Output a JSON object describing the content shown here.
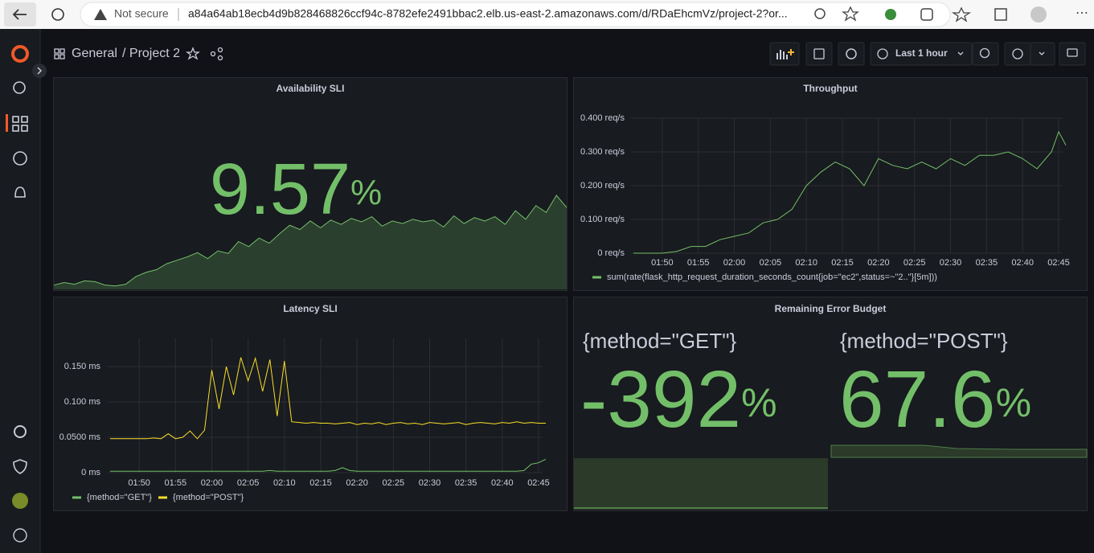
{
  "browser": {
    "security": "Not secure",
    "url": "a84a64ab18ecb4d9b828468826ccf94c-8782efe2491bbac2.elb.us-east-2.amazonaws.com/d/RDaEhcmVz/project-2?or..."
  },
  "header": {
    "folder": "General",
    "title": "/ Project 2",
    "time_range": "Last 1 hour"
  },
  "panels": [
    {
      "title": "Availability SLI",
      "type": "stat",
      "value": 9.57,
      "unit": "%",
      "color": "#73bf69",
      "sparkline": [
        0.5,
        0.8,
        0.6,
        1,
        0.9,
        0.5,
        0.4,
        0.6,
        1.5,
        2,
        2.3,
        3,
        3.4,
        3.8,
        4.3,
        3.6,
        4.5,
        4.2,
        5.6,
        5,
        6,
        5.4,
        6.5,
        7.5,
        7,
        8,
        7.2,
        8.1,
        7.6,
        8.3,
        7.9,
        8.5,
        7.4,
        8,
        7.7,
        8.2,
        7.9,
        8.1,
        7.3,
        8.6,
        7.7,
        8.4,
        8,
        8.5,
        7.6,
        9.2,
        8.2,
        9.8,
        9,
        11,
        9.57
      ]
    },
    {
      "title": "Throughput",
      "chart_data": {
        "type": "line",
        "x": [
          "01:46",
          "01:48",
          "01:50",
          "01:52",
          "01:54",
          "01:56",
          "01:58",
          "02:00",
          "02:02",
          "02:04",
          "02:06",
          "02:08",
          "02:10",
          "02:12",
          "02:14",
          "02:16",
          "02:18",
          "02:20",
          "02:22",
          "02:24",
          "02:26",
          "02:28",
          "02:30",
          "02:32",
          "02:34",
          "02:36",
          "02:38",
          "02:40",
          "02:42",
          "02:44",
          "02:45",
          "02:46"
        ],
        "xlim": [
          "01:45",
          "02:46"
        ],
        "xticks": [
          "01:50",
          "01:55",
          "02:00",
          "02:05",
          "02:10",
          "02:15",
          "02:20",
          "02:25",
          "02:30",
          "02:35",
          "02:40",
          "02:45"
        ],
        "ylim": [
          0,
          0.4
        ],
        "yticks": [
          {
            "value": 0,
            "label": "0 req/s"
          },
          {
            "value": 0.1,
            "label": "0.100 req/s"
          },
          {
            "value": 0.2,
            "label": "0.200 req/s"
          },
          {
            "value": 0.3,
            "label": "0.300 req/s"
          },
          {
            "value": 0.4,
            "label": "0.400 req/s"
          }
        ],
        "grid": true,
        "series": [
          {
            "name": "sum(rate(flask_http_request_duration_seconds_count{job=\"ec2\",status=~\"2..\"}[5m]))",
            "color": "#73bf69",
            "values": [
              0,
              0,
              0,
              0.005,
              0.02,
              0.02,
              0.04,
              0.05,
              0.06,
              0.09,
              0.1,
              0.13,
              0.2,
              0.24,
              0.27,
              0.25,
              0.2,
              0.28,
              0.26,
              0.25,
              0.27,
              0.25,
              0.28,
              0.26,
              0.29,
              0.29,
              0.3,
              0.28,
              0.25,
              0.3,
              0.36,
              0.32
            ]
          }
        ]
      }
    },
    {
      "title": "Latency SLI",
      "chart_data": {
        "type": "line",
        "x": [
          "01:46",
          "01:47",
          "01:48",
          "01:49",
          "01:50",
          "01:51",
          "01:52",
          "01:53",
          "01:54",
          "01:55",
          "01:56",
          "01:57",
          "01:58",
          "01:59",
          "02:00",
          "02:01",
          "02:02",
          "02:03",
          "02:04",
          "02:05",
          "02:06",
          "02:07",
          "02:08",
          "02:09",
          "02:10",
          "02:11",
          "02:12",
          "02:13",
          "02:14",
          "02:15",
          "02:16",
          "02:17",
          "02:18",
          "02:19",
          "02:20",
          "02:21",
          "02:22",
          "02:23",
          "02:24",
          "02:25",
          "02:26",
          "02:27",
          "02:28",
          "02:29",
          "02:30",
          "02:31",
          "02:32",
          "02:33",
          "02:34",
          "02:35",
          "02:36",
          "02:37",
          "02:38",
          "02:39",
          "02:40",
          "02:41",
          "02:42",
          "02:43",
          "02:44",
          "02:45",
          "02:46"
        ],
        "xlim": [
          "01:45",
          "02:46"
        ],
        "xticks": [
          "01:50",
          "01:55",
          "02:00",
          "02:05",
          "02:10",
          "02:15",
          "02:20",
          "02:25",
          "02:30",
          "02:35",
          "02:40",
          "02:45"
        ],
        "ylim": [
          0,
          0.19
        ],
        "yticks": [
          {
            "value": 0,
            "label": "0 ms"
          },
          {
            "value": 0.05,
            "label": "0.0500 ms"
          },
          {
            "value": 0.1,
            "label": "0.100 ms"
          },
          {
            "value": 0.15,
            "label": "0.150 ms"
          }
        ],
        "grid": true,
        "series": [
          {
            "name": "{method=\"GET\"}",
            "color": "#73bf69",
            "values": [
              0.002,
              0.002,
              0.002,
              0.002,
              0.002,
              0.002,
              0.002,
              0.002,
              0.002,
              0.002,
              0.002,
              0.002,
              0.002,
              0.002,
              0.002,
              0.002,
              0.002,
              0.002,
              0.002,
              0.002,
              0.002,
              0.002,
              0.003,
              0.002,
              0.002,
              0.002,
              0.002,
              0.002,
              0.002,
              0.002,
              0.002,
              0.003,
              0.007,
              0.003,
              0.002,
              0.002,
              0.002,
              0.002,
              0.002,
              0.002,
              0.002,
              0.002,
              0.002,
              0.002,
              0.002,
              0.002,
              0.002,
              0.002,
              0.002,
              0.002,
              0.002,
              0.002,
              0.002,
              0.002,
              0.002,
              0.002,
              0.002,
              0.003,
              0.012,
              0.014,
              0.019
            ]
          },
          {
            "name": "{method=\"POST\"}",
            "color": "#fade2a",
            "values": [
              0.048,
              0.048,
              0.048,
              0.048,
              0.048,
              0.048,
              0.049,
              0.048,
              0.055,
              0.048,
              0.05,
              0.059,
              0.048,
              0.06,
              0.145,
              0.09,
              0.15,
              0.11,
              0.163,
              0.13,
              0.162,
              0.115,
              0.16,
              0.08,
              0.158,
              0.072,
              0.071,
              0.07,
              0.071,
              0.07,
              0.07,
              0.069,
              0.07,
              0.071,
              0.068,
              0.07,
              0.069,
              0.071,
              0.068,
              0.07,
              0.071,
              0.069,
              0.07,
              0.068,
              0.071,
              0.07,
              0.069,
              0.07,
              0.071,
              0.068,
              0.07,
              0.071,
              0.07,
              0.069,
              0.071,
              0.07,
              0.072,
              0.07,
              0.071,
              0.07,
              0.07
            ]
          }
        ]
      }
    },
    {
      "title": "Remaining Error Budget",
      "type": "stat",
      "color": "#73bf69",
      "stats": [
        {
          "name": "{method=\"GET\"}",
          "value": -392,
          "unit": "%"
        },
        {
          "name": "{method=\"POST\"}",
          "value": 67.6,
          "unit": "%"
        }
      ]
    }
  ]
}
